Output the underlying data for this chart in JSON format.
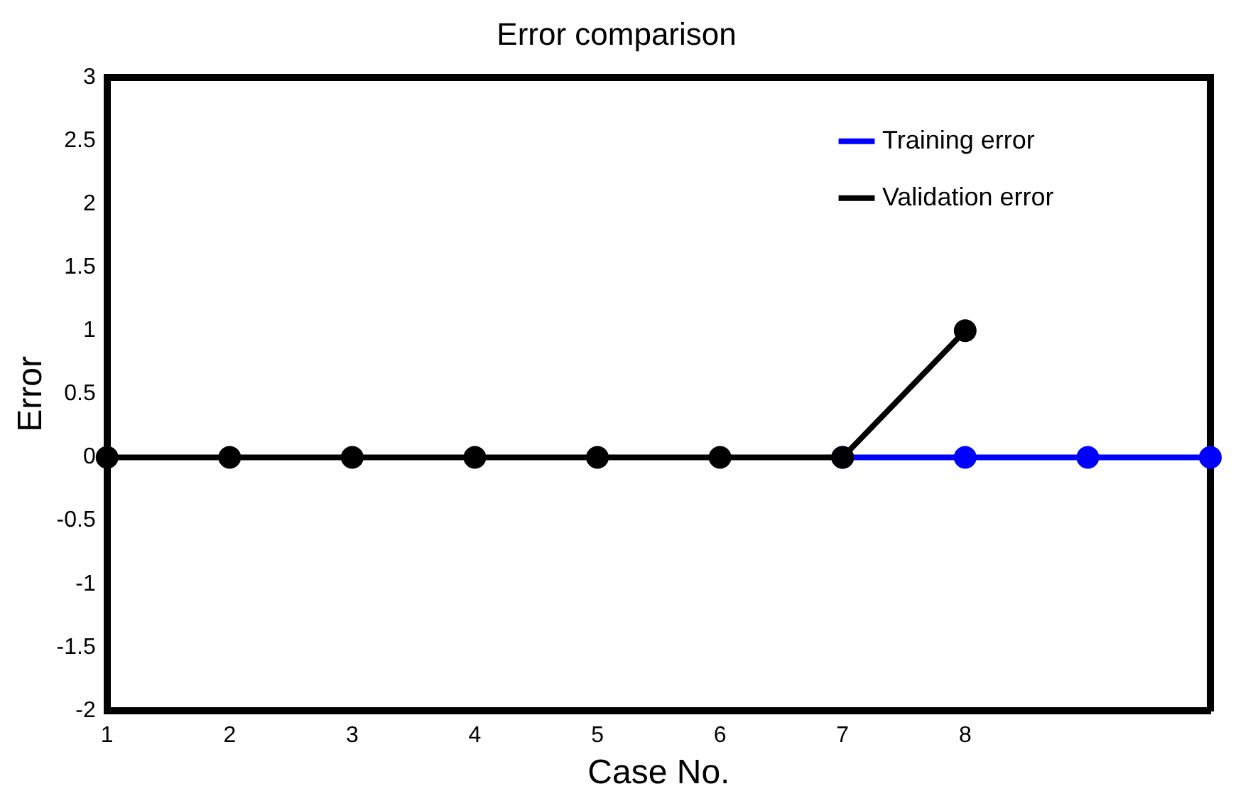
{
  "chart_data": {
    "type": "line",
    "title": "Error comparison",
    "xlabel": "Case No.",
    "ylabel": "Error",
    "xlim": [
      1,
      10
    ],
    "xticks": [
      1,
      2,
      3,
      4,
      5,
      6,
      7,
      8
    ],
    "ylim": [
      -2,
      3
    ],
    "yticks": [
      -2,
      -1.5,
      -1,
      -0.5,
      0,
      0.5,
      1,
      1.5,
      2,
      2.5,
      3
    ],
    "series": [
      {
        "name": "Training error",
        "color": "#0000ff",
        "x": [
          7,
          8,
          9,
          10
        ],
        "values": [
          0,
          0,
          0,
          0
        ]
      },
      {
        "name": "Validation error",
        "color": "#000000",
        "x": [
          1,
          2,
          3,
          4,
          5,
          6,
          7,
          8
        ],
        "values": [
          0,
          0,
          0,
          0,
          0,
          0,
          0,
          1
        ]
      }
    ],
    "legend": "top right",
    "grid": false,
    "marker": "circle",
    "line_style": "solid"
  }
}
